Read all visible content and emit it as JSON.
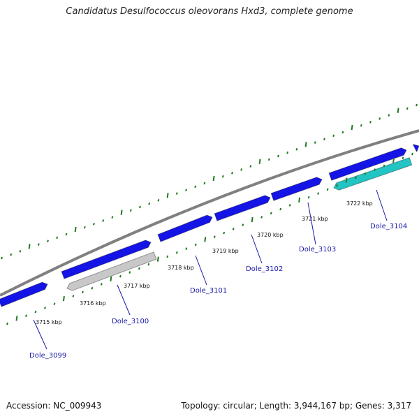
{
  "title": "Candidatus Desulfococcus oleovorans Hxd3, complete genome",
  "footer": {
    "accession": "Accession: NC_009943",
    "summary": "Topology: circular; Length: 3,944,167 bp; Genes: 3,317"
  },
  "colors": {
    "backbone": "#808080",
    "gene_forward": "#1414e6",
    "gene_reverse": "#1414e6",
    "gene_highlight": "#22c4c4",
    "gene_pseudo": "#c8c8c8",
    "ticks": "#1f7a1f",
    "gene_label": "#1a1aa6"
  },
  "ticks": [
    {
      "label": "3715 kbp"
    },
    {
      "label": "3716 kbp"
    },
    {
      "label": "3717 kbp"
    },
    {
      "label": "3718 kbp"
    },
    {
      "label": "3719 kbp"
    },
    {
      "label": "3720 kbp"
    },
    {
      "label": "3721 kbp"
    },
    {
      "label": "3722 kbp"
    }
  ],
  "genes": [
    {
      "label": "Dole_3099",
      "strand": "forward",
      "type": "cds"
    },
    {
      "label": "Dole_3100",
      "strand": "reverse",
      "type": "pseudo"
    },
    {
      "label": "Dole_3101",
      "strand": "forward",
      "type": "cds"
    },
    {
      "label": "Dole_3102",
      "strand": "forward",
      "type": "cds"
    },
    {
      "label": "Dole_3103",
      "strand": "forward",
      "type": "cds"
    },
    {
      "label": "Dole_3104",
      "strand": "reverse",
      "type": "highlight"
    }
  ]
}
